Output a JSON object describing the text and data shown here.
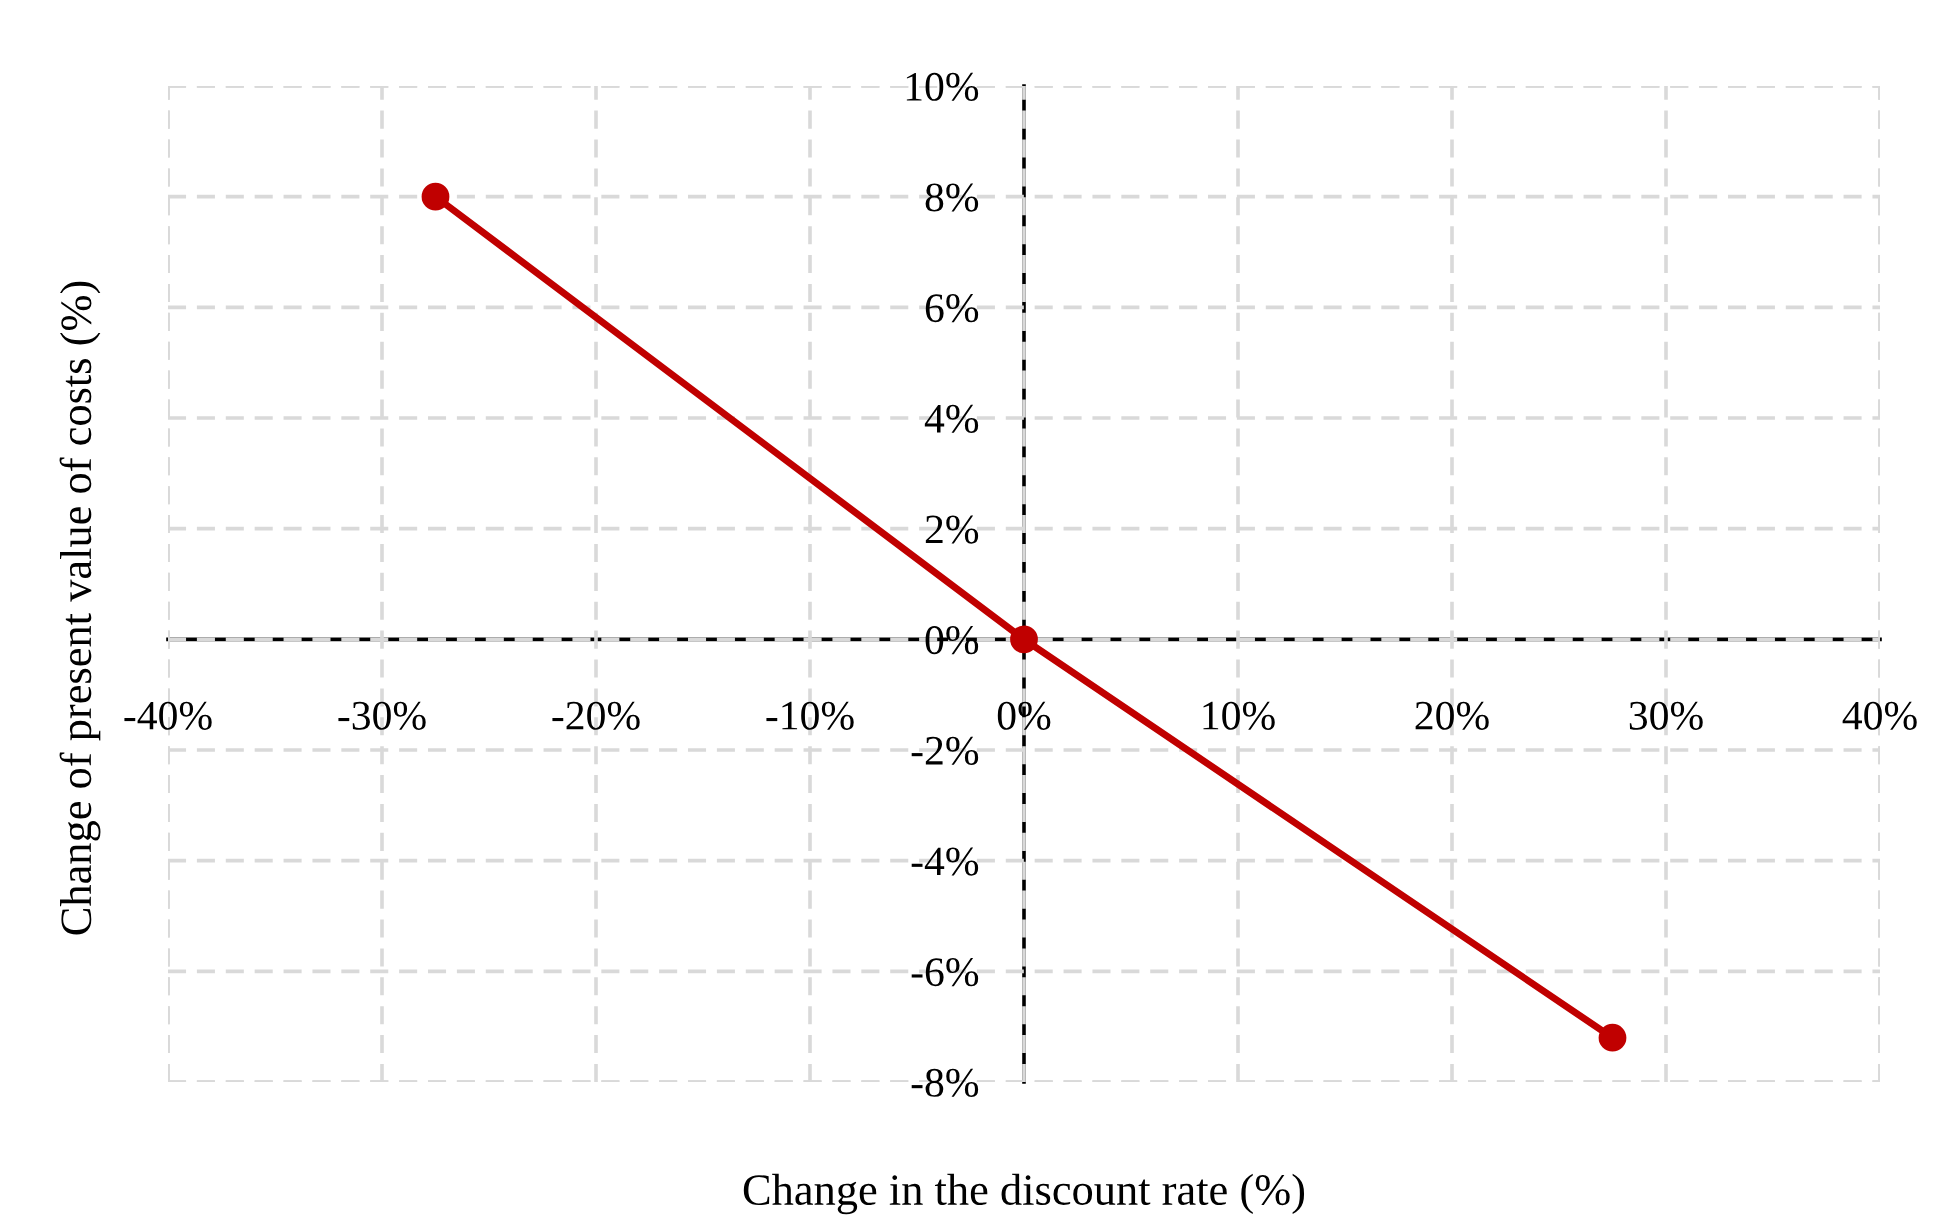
{
  "chart_data": {
    "type": "line",
    "xlabel": "Change in the discount rate (%)",
    "ylabel": "Change of present value of costs (%)",
    "series": [
      {
        "color": "#c00000",
        "x": [
          -27.5,
          0,
          27.5
        ],
        "values": [
          8.0,
          0,
          -7.2
        ]
      }
    ],
    "marker": "circle",
    "line_style": "solid",
    "grid": true,
    "xlim": [
      -40,
      40
    ],
    "xticks": [
      {
        "value": -40,
        "label": "-40%"
      },
      {
        "value": -30,
        "label": "-30%"
      },
      {
        "value": -20,
        "label": "-20%"
      },
      {
        "value": -10,
        "label": "-10%"
      },
      {
        "value": 0,
        "label": "0%"
      },
      {
        "value": 10,
        "label": "10%"
      },
      {
        "value": 20,
        "label": "20%"
      },
      {
        "value": 30,
        "label": "30%"
      },
      {
        "value": 40,
        "label": "40%"
      }
    ],
    "ylim": [
      -8,
      10
    ],
    "yticks": [
      {
        "value": -8,
        "label": "-8%"
      },
      {
        "value": -6,
        "label": "-6%"
      },
      {
        "value": -4,
        "label": "-4%"
      },
      {
        "value": -2,
        "label": "-2%"
      },
      {
        "value": 0,
        "label": "0%"
      },
      {
        "value": 2,
        "label": "2%"
      },
      {
        "value": 4,
        "label": "4%"
      },
      {
        "value": 6,
        "label": "6%"
      },
      {
        "value": 8,
        "label": "8%"
      },
      {
        "value": 10,
        "label": "10%"
      }
    ]
  }
}
